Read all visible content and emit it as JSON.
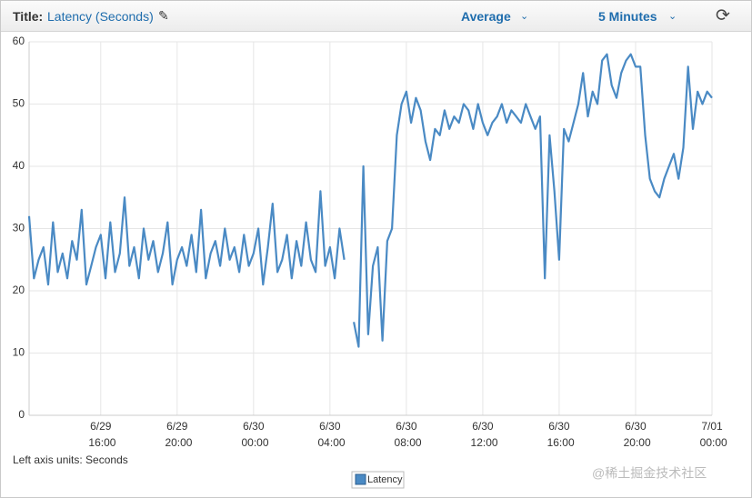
{
  "header": {
    "title_label": "Title:",
    "title": "Latency (Seconds)",
    "statistic": "Average",
    "period": "5 Minutes"
  },
  "axis_units": "Left axis units: Seconds",
  "watermark": "@稀土掘金技术社区",
  "chart_data": {
    "type": "line",
    "x": [
      "6/29 12:15",
      "6/29 12:30",
      "6/29 12:45",
      "6/29 13:00",
      "6/29 13:15",
      "6/29 13:30",
      "6/29 13:45",
      "6/29 14:00",
      "6/29 14:15",
      "6/29 14:30",
      "6/29 14:45",
      "6/29 15:00",
      "6/29 15:15",
      "6/29 15:30",
      "6/29 15:45",
      "6/29 16:00",
      "6/29 16:15",
      "6/29 16:30",
      "6/29 16:45",
      "6/29 17:00",
      "6/29 17:15",
      "6/29 17:30",
      "6/29 17:45",
      "6/29 18:00",
      "6/29 18:15",
      "6/29 18:30",
      "6/29 18:45",
      "6/29 19:00",
      "6/29 19:15",
      "6/29 19:30",
      "6/29 19:45",
      "6/29 20:00",
      "6/29 20:15",
      "6/29 20:30",
      "6/29 20:45",
      "6/29 21:00",
      "6/29 21:15",
      "6/29 21:30",
      "6/29 21:45",
      "6/29 22:00",
      "6/29 22:15",
      "6/29 22:30",
      "6/29 22:45",
      "6/29 23:00",
      "6/29 23:15",
      "6/29 23:30",
      "6/29 23:45",
      "6/30 00:00",
      "6/30 00:15",
      "6/30 00:30",
      "6/30 00:45",
      "6/30 01:00",
      "6/30 01:15",
      "6/30 01:30",
      "6/30 01:45",
      "6/30 02:00",
      "6/30 02:15",
      "6/30 02:30",
      "6/30 02:45",
      "6/30 03:00",
      "6/30 03:15",
      "6/30 03:30",
      "6/30 03:45",
      "6/30 04:00",
      "6/30 04:15",
      "6/30 04:30",
      "6/30 04:45",
      "6/30 05:00",
      "6/30 05:15",
      "6/30 05:30",
      "6/30 05:45",
      "6/30 06:00",
      "6/30 06:15",
      "6/30 06:30",
      "6/30 06:45",
      "6/30 07:00",
      "6/30 07:15",
      "6/30 07:30",
      "6/30 07:45",
      "6/30 08:00",
      "6/30 08:15",
      "6/30 08:30",
      "6/30 08:45",
      "6/30 09:00",
      "6/30 09:15",
      "6/30 09:30",
      "6/30 09:45",
      "6/30 10:00",
      "6/30 10:15",
      "6/30 10:30",
      "6/30 10:45",
      "6/30 11:00",
      "6/30 11:15",
      "6/30 11:30",
      "6/30 11:45",
      "6/30 12:00",
      "6/30 12:15",
      "6/30 12:30",
      "6/30 12:45",
      "6/30 13:00",
      "6/30 13:15",
      "6/30 13:30",
      "6/30 13:45",
      "6/30 14:00",
      "6/30 14:15",
      "6/30 14:30",
      "6/30 14:45",
      "6/30 15:00",
      "6/30 15:15",
      "6/30 15:30",
      "6/30 15:45",
      "6/30 16:00",
      "6/30 16:15",
      "6/30 16:30",
      "6/30 16:45",
      "6/30 17:00",
      "6/30 17:15",
      "6/30 17:30",
      "6/30 17:45",
      "6/30 18:00",
      "6/30 18:15",
      "6/30 18:30",
      "6/30 18:45",
      "6/30 19:00",
      "6/30 19:15",
      "6/30 19:30",
      "6/30 19:45",
      "6/30 20:00",
      "6/30 20:15",
      "6/30 20:30",
      "6/30 20:45",
      "6/30 21:00",
      "6/30 21:15",
      "6/30 21:30",
      "6/30 21:45",
      "6/30 22:00",
      "6/30 22:15",
      "6/30 22:30",
      "6/30 22:45",
      "6/30 23:00",
      "6/30 23:15",
      "6/30 23:30",
      "6/30 23:45",
      "7/01 00:00"
    ],
    "series": [
      {
        "name": "Latency",
        "color": "#4a8ac4",
        "values": [
          32,
          22,
          25,
          27,
          21,
          31,
          23,
          26,
          22,
          28,
          25,
          33,
          21,
          24,
          27,
          29,
          22,
          31,
          23,
          26,
          35,
          24,
          27,
          22,
          30,
          25,
          28,
          23,
          26,
          31,
          21,
          25,
          27,
          24,
          29,
          23,
          33,
          22,
          26,
          28,
          24,
          30,
          25,
          27,
          23,
          29,
          24,
          26,
          30,
          21,
          27,
          34,
          23,
          25,
          29,
          22,
          28,
          24,
          31,
          25,
          23,
          36,
          24,
          27,
          22,
          30,
          25,
          null,
          15,
          11,
          40,
          13,
          24,
          27,
          12,
          28,
          30,
          45,
          50,
          52,
          47,
          51,
          49,
          44,
          41,
          46,
          45,
          49,
          46,
          48,
          47,
          50,
          49,
          46,
          50,
          47,
          45,
          47,
          48,
          50,
          47,
          49,
          48,
          47,
          50,
          48,
          46,
          48,
          22,
          45,
          36,
          25,
          46,
          44,
          47,
          50,
          55,
          48,
          52,
          50,
          57,
          58,
          53,
          51,
          55,
          57,
          58,
          56,
          56,
          45,
          38,
          36,
          35,
          38,
          40,
          42,
          38,
          43,
          56,
          46,
          52,
          50,
          52,
          51
        ]
      }
    ],
    "xlim": [
      "6/29 12:15",
      "7/01 00:00"
    ],
    "xticks": [
      "6/29 16:00",
      "6/29 20:00",
      "6/30 00:00",
      "6/30 04:00",
      "6/30 08:00",
      "6/30 12:00",
      "6/30 16:00",
      "6/30 20:00",
      "7/01 00:00"
    ],
    "ylim": [
      0,
      60
    ],
    "yticks": [
      0,
      10,
      20,
      30,
      40,
      50,
      60
    ],
    "grid": true
  }
}
